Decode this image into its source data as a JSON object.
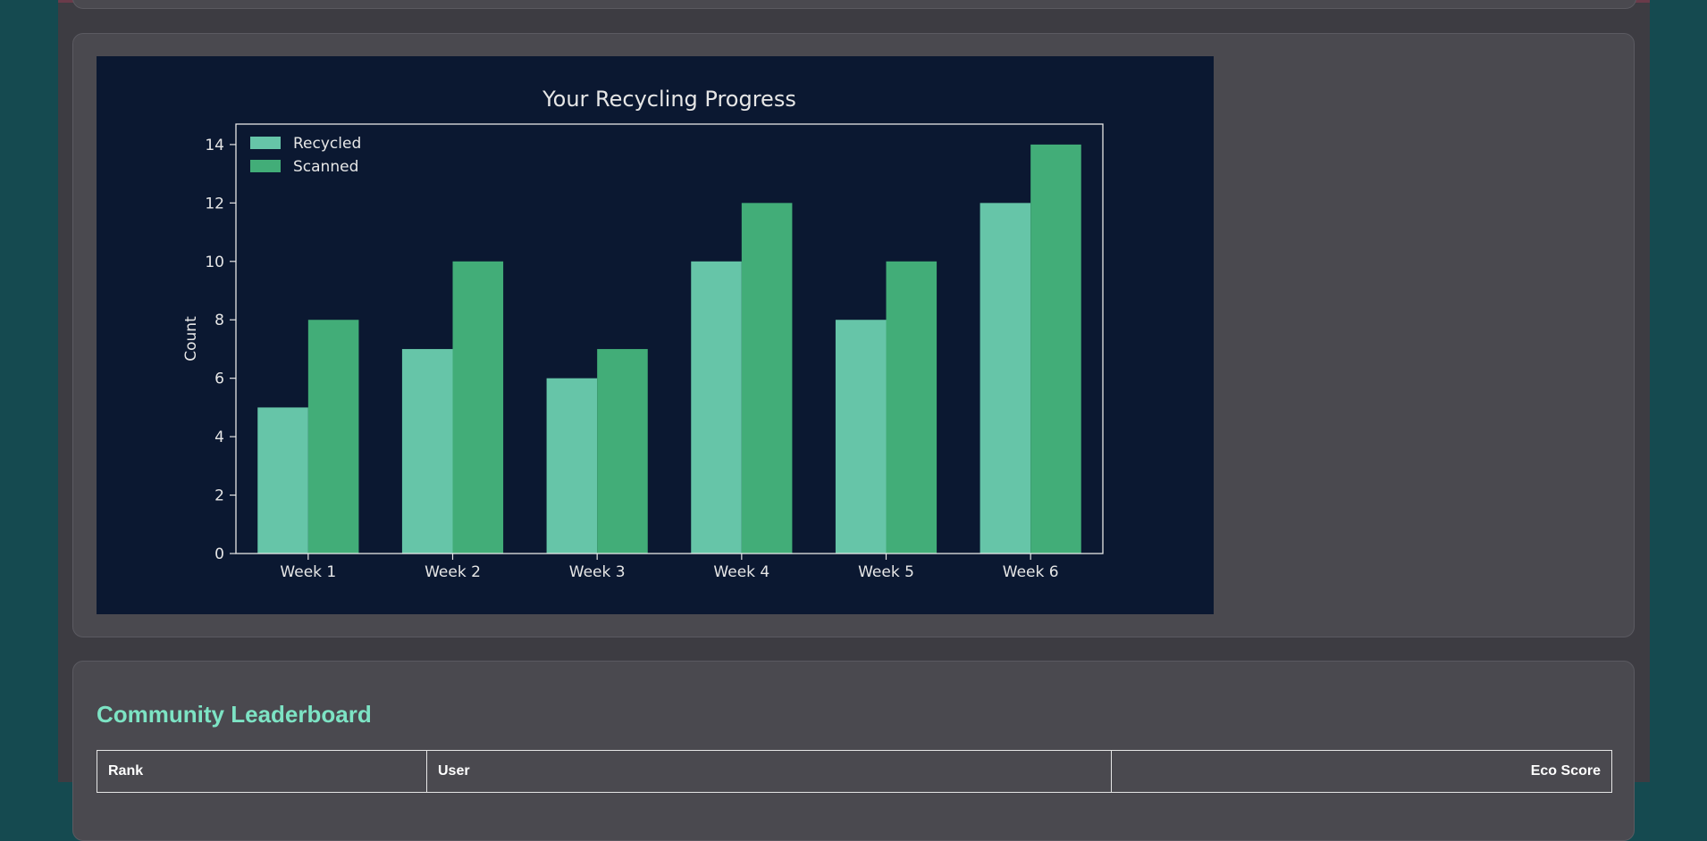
{
  "chart_data": {
    "type": "bar",
    "title": "Your Recycling Progress",
    "xlabel": "",
    "ylabel": "Count",
    "categories": [
      "Week 1",
      "Week 2",
      "Week 3",
      "Week 4",
      "Week 5",
      "Week 6"
    ],
    "series": [
      {
        "name": "Recycled",
        "values": [
          5,
          7,
          6,
          10,
          8,
          12
        ],
        "color": "#66c5a8"
      },
      {
        "name": "Scanned",
        "values": [
          8,
          10,
          7,
          12,
          10,
          14
        ],
        "color": "#42ad78"
      }
    ],
    "ylim": [
      0,
      14.7
    ],
    "yticks": [
      0,
      2,
      4,
      6,
      8,
      10,
      12,
      14
    ],
    "legend": "top-left",
    "grid": false,
    "background": "#0b1831",
    "text_color": "#e6e6e6"
  },
  "leaderboard": {
    "title": "Community Leaderboard",
    "columns": [
      "Rank",
      "User",
      "Eco Score"
    ]
  },
  "theme": {
    "accent": "#7de3c4",
    "page_bg": "#154a50",
    "card_bg": "#4a494f"
  }
}
